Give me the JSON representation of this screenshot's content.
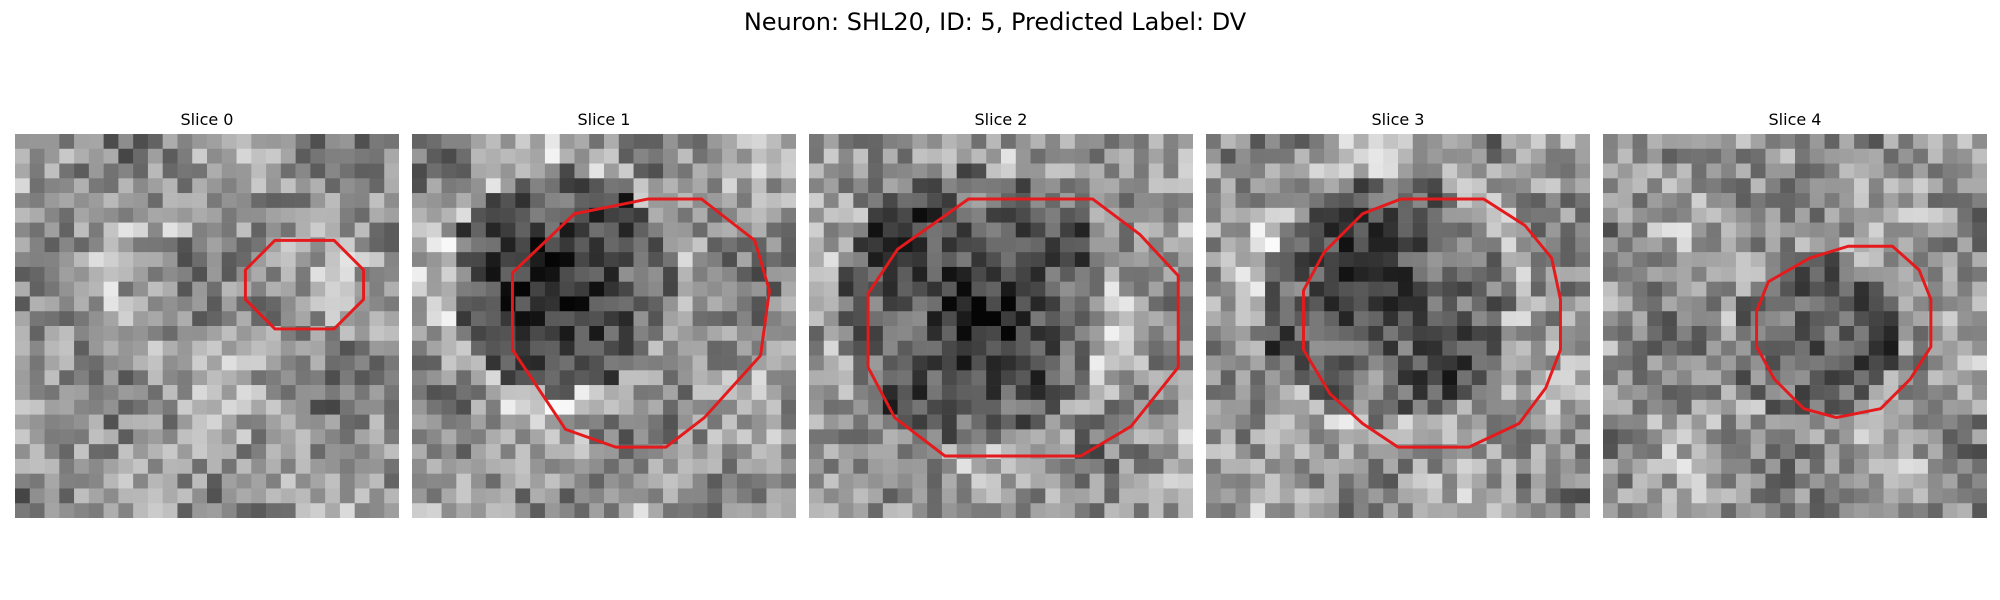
{
  "figure": {
    "title": "Neuron: SHL20, ID: 5, Predicted Label: DV"
  },
  "overlay": {
    "contour_color": "#e41a1c"
  },
  "slices": [
    {
      "label": "Slice 0",
      "contour": [
        [
          9.8,
          3.6
        ],
        [
          10.8,
          3.6
        ],
        [
          11.8,
          4.6
        ],
        [
          11.8,
          5.6
        ],
        [
          10.8,
          6.6
        ],
        [
          8.8,
          6.6
        ],
        [
          7.8,
          5.6
        ],
        [
          7.8,
          4.6
        ],
        [
          8.8,
          3.6
        ]
      ]
    },
    {
      "label": "Slice 1",
      "contour": [
        [
          8,
          2.2
        ],
        [
          9.8,
          2.2
        ],
        [
          11.6,
          3.6
        ],
        [
          12.1,
          5.3
        ],
        [
          11.8,
          7.5
        ],
        [
          9.9,
          9.6
        ],
        [
          8.6,
          10.6
        ],
        [
          6.9,
          10.6
        ],
        [
          5.2,
          10
        ],
        [
          3.4,
          7.3
        ],
        [
          3.4,
          4.7
        ],
        [
          5.5,
          2.7
        ]
      ]
    },
    {
      "label": "Slice 2",
      "contour": [
        [
          7.4,
          2.2
        ],
        [
          9.6,
          2.2
        ],
        [
          11.2,
          3.4
        ],
        [
          12.5,
          4.8
        ],
        [
          12.5,
          7.9
        ],
        [
          10.9,
          9.9
        ],
        [
          9.2,
          10.9
        ],
        [
          4.6,
          10.9
        ],
        [
          2.9,
          9.6
        ],
        [
          2,
          7.9
        ],
        [
          2,
          5.4
        ],
        [
          3,
          3.9
        ],
        [
          5.4,
          2.2
        ]
      ]
    },
    {
      "label": "Slice 3",
      "contour": [
        [
          6.6,
          2.2
        ],
        [
          9.4,
          2.2
        ],
        [
          10.8,
          3.1
        ],
        [
          11.7,
          4.2
        ],
        [
          12,
          5.6
        ],
        [
          12,
          7.3
        ],
        [
          11.5,
          8.6
        ],
        [
          10.6,
          9.8
        ],
        [
          8.9,
          10.6
        ],
        [
          6.5,
          10.6
        ],
        [
          5.3,
          9.8
        ],
        [
          4.2,
          8.8
        ],
        [
          3.3,
          7.3
        ],
        [
          3.3,
          5.3
        ],
        [
          4,
          4
        ],
        [
          5.3,
          2.7
        ]
      ]
    },
    {
      "label": "Slice 4",
      "contour": [
        [
          8.3,
          3.8
        ],
        [
          9.8,
          3.8
        ],
        [
          10.7,
          4.6
        ],
        [
          11.1,
          5.6
        ],
        [
          11.1,
          7.2
        ],
        [
          10.4,
          8.3
        ],
        [
          9.4,
          9.3
        ],
        [
          7.9,
          9.6
        ],
        [
          6.8,
          9.3
        ],
        [
          5.8,
          8.3
        ],
        [
          5.2,
          7.2
        ],
        [
          5.2,
          6
        ],
        [
          5.6,
          5
        ],
        [
          7,
          4.2
        ]
      ]
    }
  ]
}
